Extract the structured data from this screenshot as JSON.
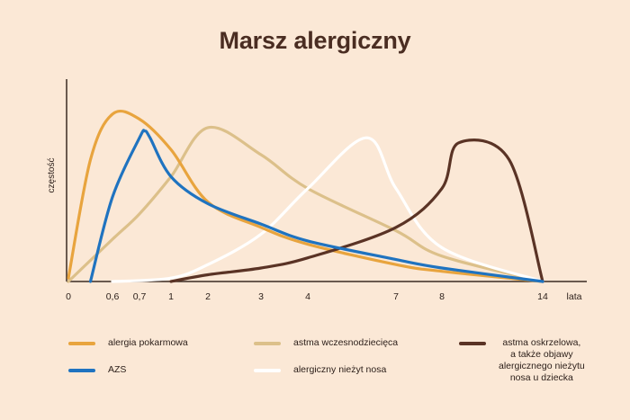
{
  "page": {
    "title": "Marsz alergiczny",
    "background": "#fbe8d6"
  },
  "chart_data": {
    "type": "line",
    "title": "Marsz alergiczny",
    "xlabel": "lata",
    "ylabel": "częstość",
    "x_tick_labels": [
      "0",
      "0,6",
      "0,7",
      "1",
      "2",
      "3",
      "4",
      "7",
      "8",
      "14"
    ],
    "x_scale": "nonlinear (categorical tick positions)",
    "y_ticks": "none",
    "grid": false,
    "legend_position": "bottom",
    "series": [
      {
        "name": "alergia pokarmowa",
        "color": "#e8a43e",
        "x": [
          0,
          0.3,
          0.6,
          0.7,
          1,
          2,
          3,
          4,
          7,
          8,
          14
        ],
        "y": [
          0.02,
          0.72,
          0.99,
          0.96,
          0.78,
          0.47,
          0.32,
          0.22,
          0.1,
          0.06,
          0.0
        ]
      },
      {
        "name": "AZS",
        "color": "#1f73c0",
        "x": [
          0.3,
          0.6,
          0.7,
          0.75,
          0.8,
          1,
          2,
          3,
          4,
          7,
          8,
          14
        ],
        "y": [
          0.0,
          0.5,
          0.85,
          0.89,
          0.85,
          0.62,
          0.46,
          0.34,
          0.24,
          0.13,
          0.08,
          0.0
        ]
      },
      {
        "name": "astma wczesnodziecięca",
        "color": "#dcc08a",
        "x": [
          0,
          0.6,
          0.7,
          1,
          2,
          3,
          4,
          7,
          8,
          14
        ],
        "y": [
          0.0,
          0.25,
          0.4,
          0.62,
          0.91,
          0.75,
          0.55,
          0.3,
          0.15,
          0.0
        ]
      },
      {
        "name": "alergiczny nieżyt nosa",
        "color": "#ffffff",
        "x": [
          0.6,
          1,
          2,
          3,
          4,
          6,
          7,
          8,
          14
        ],
        "y": [
          0.0,
          0.02,
          0.1,
          0.28,
          0.55,
          0.85,
          0.55,
          0.2,
          0.0
        ]
      },
      {
        "name": "astma oskrzelowa,\na także objawy\nalergicznego nieżytu\nnosa u dziecka",
        "color": "#5a3325",
        "x": [
          1,
          2,
          3,
          4,
          7,
          8,
          9,
          12,
          14
        ],
        "y": [
          0.0,
          0.04,
          0.08,
          0.14,
          0.32,
          0.55,
          0.82,
          0.72,
          0.0
        ]
      }
    ]
  },
  "legend": {
    "items": [
      {
        "label": "alergia pokarmowa",
        "color": "#e8a43e"
      },
      {
        "label": "AZS",
        "color": "#1f73c0"
      },
      {
        "label": "astma wczesnodziecięca",
        "color": "#dcc08a"
      },
      {
        "label": "alergiczny nieżyt nosa",
        "color": "#ffffff"
      },
      {
        "label": "astma oskrzelowa,\na także objawy\nalergicznego nieżytu\nnosa u dziecka",
        "color": "#5a3325"
      }
    ]
  }
}
